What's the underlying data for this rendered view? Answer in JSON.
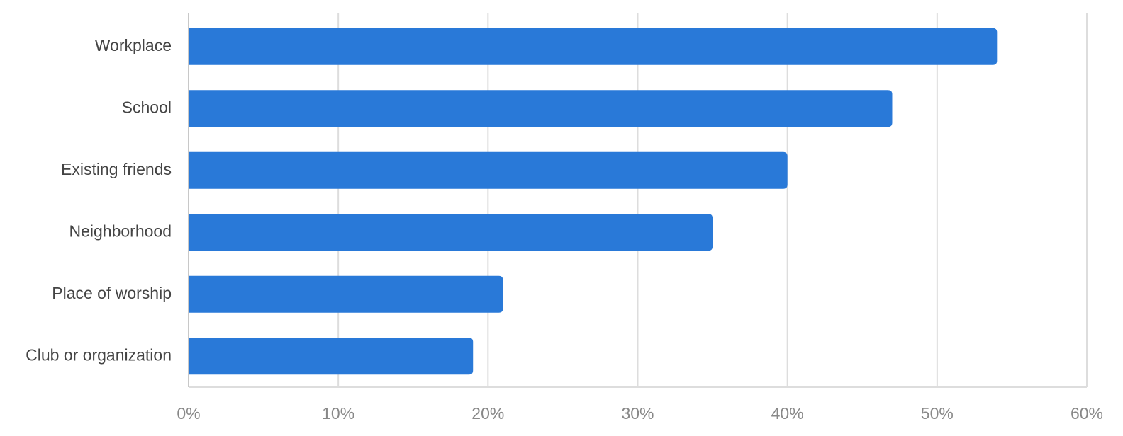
{
  "chart_data": {
    "type": "bar",
    "orientation": "horizontal",
    "categories": [
      "Workplace",
      "School",
      "Existing friends",
      "Neighborhood",
      "Place of worship",
      "Club or organization"
    ],
    "values": [
      54,
      47,
      40,
      35,
      21,
      19
    ],
    "color": "#2979d8",
    "xlim": [
      0,
      60
    ],
    "xticks": [
      {
        "value": 0,
        "label": "0%"
      },
      {
        "value": 10,
        "label": "10%"
      },
      {
        "value": 20,
        "label": "20%"
      },
      {
        "value": 30,
        "label": "30%"
      },
      {
        "value": 40,
        "label": "40%"
      },
      {
        "value": 50,
        "label": "50%"
      },
      {
        "value": 60,
        "label": "60%"
      }
    ],
    "grid": true
  }
}
